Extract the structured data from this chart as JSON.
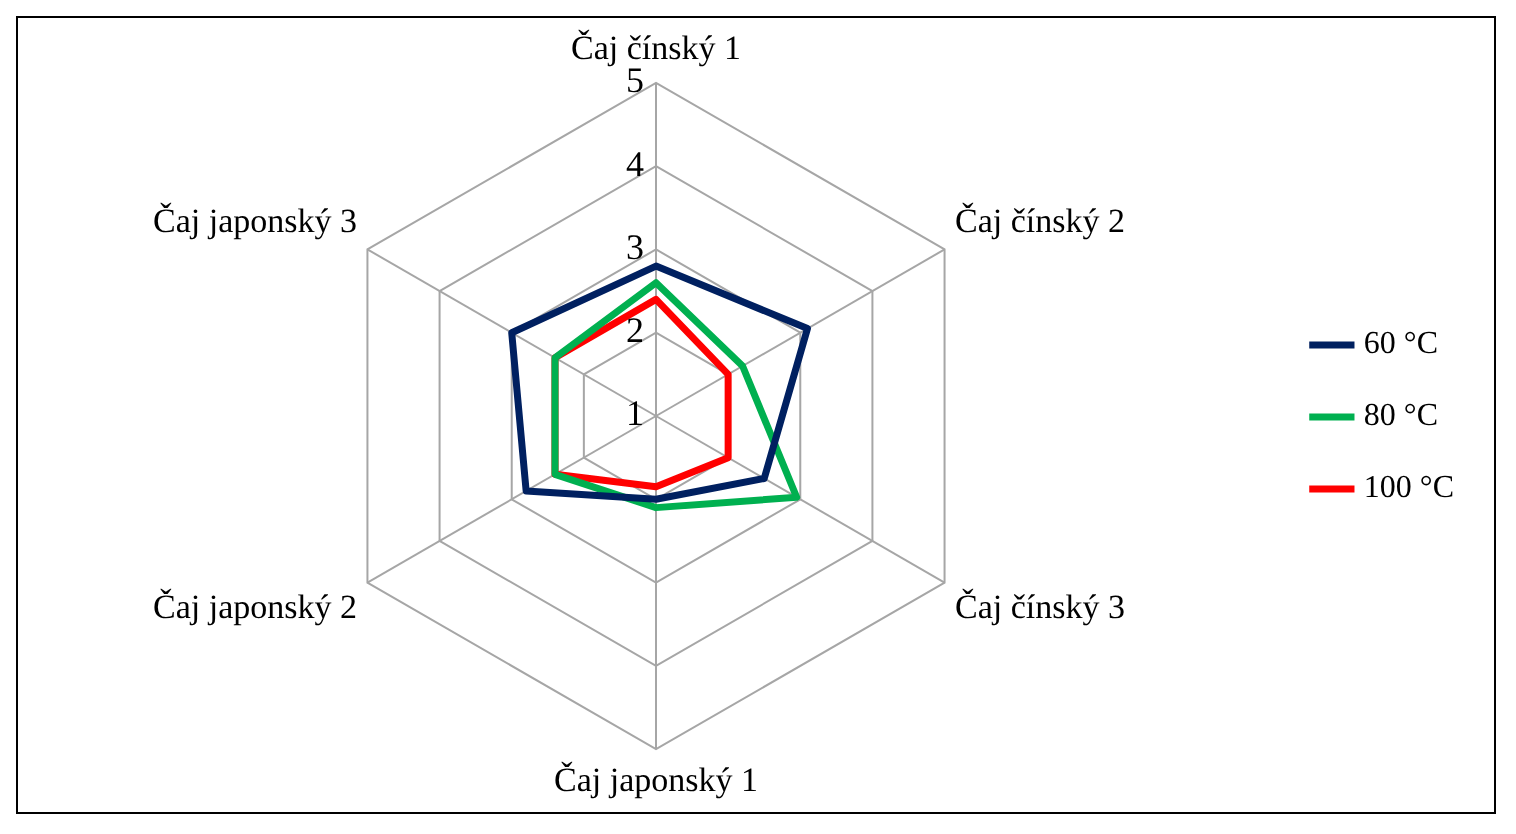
{
  "chart_data": {
    "type": "radar",
    "categories": [
      "Čaj čínský 1",
      "Čaj čínský 2",
      "Čaj čínský 3",
      "Čaj japonský 1",
      "Čaj japonský 2",
      "Čaj japonský 3"
    ],
    "series": [
      {
        "name": "60 °C",
        "color": "#002060",
        "values": [
          2.8,
          3.1,
          2.5,
          2.0,
          2.8,
          3.0
        ]
      },
      {
        "name": "80 °C",
        "color": "#00b050",
        "values": [
          2.6,
          2.2,
          2.95,
          2.1,
          2.4,
          2.4
        ]
      },
      {
        "name": "100 °C",
        "color": "#ff0000",
        "values": [
          2.4,
          2.0,
          2.0,
          1.85,
          2.4,
          2.4
        ]
      }
    ],
    "ylim": [
      1,
      5
    ],
    "yticks": [
      1,
      2,
      3,
      4,
      5
    ],
    "grid": true,
    "legend": "right",
    "marker": "none",
    "line_style": "solid"
  }
}
